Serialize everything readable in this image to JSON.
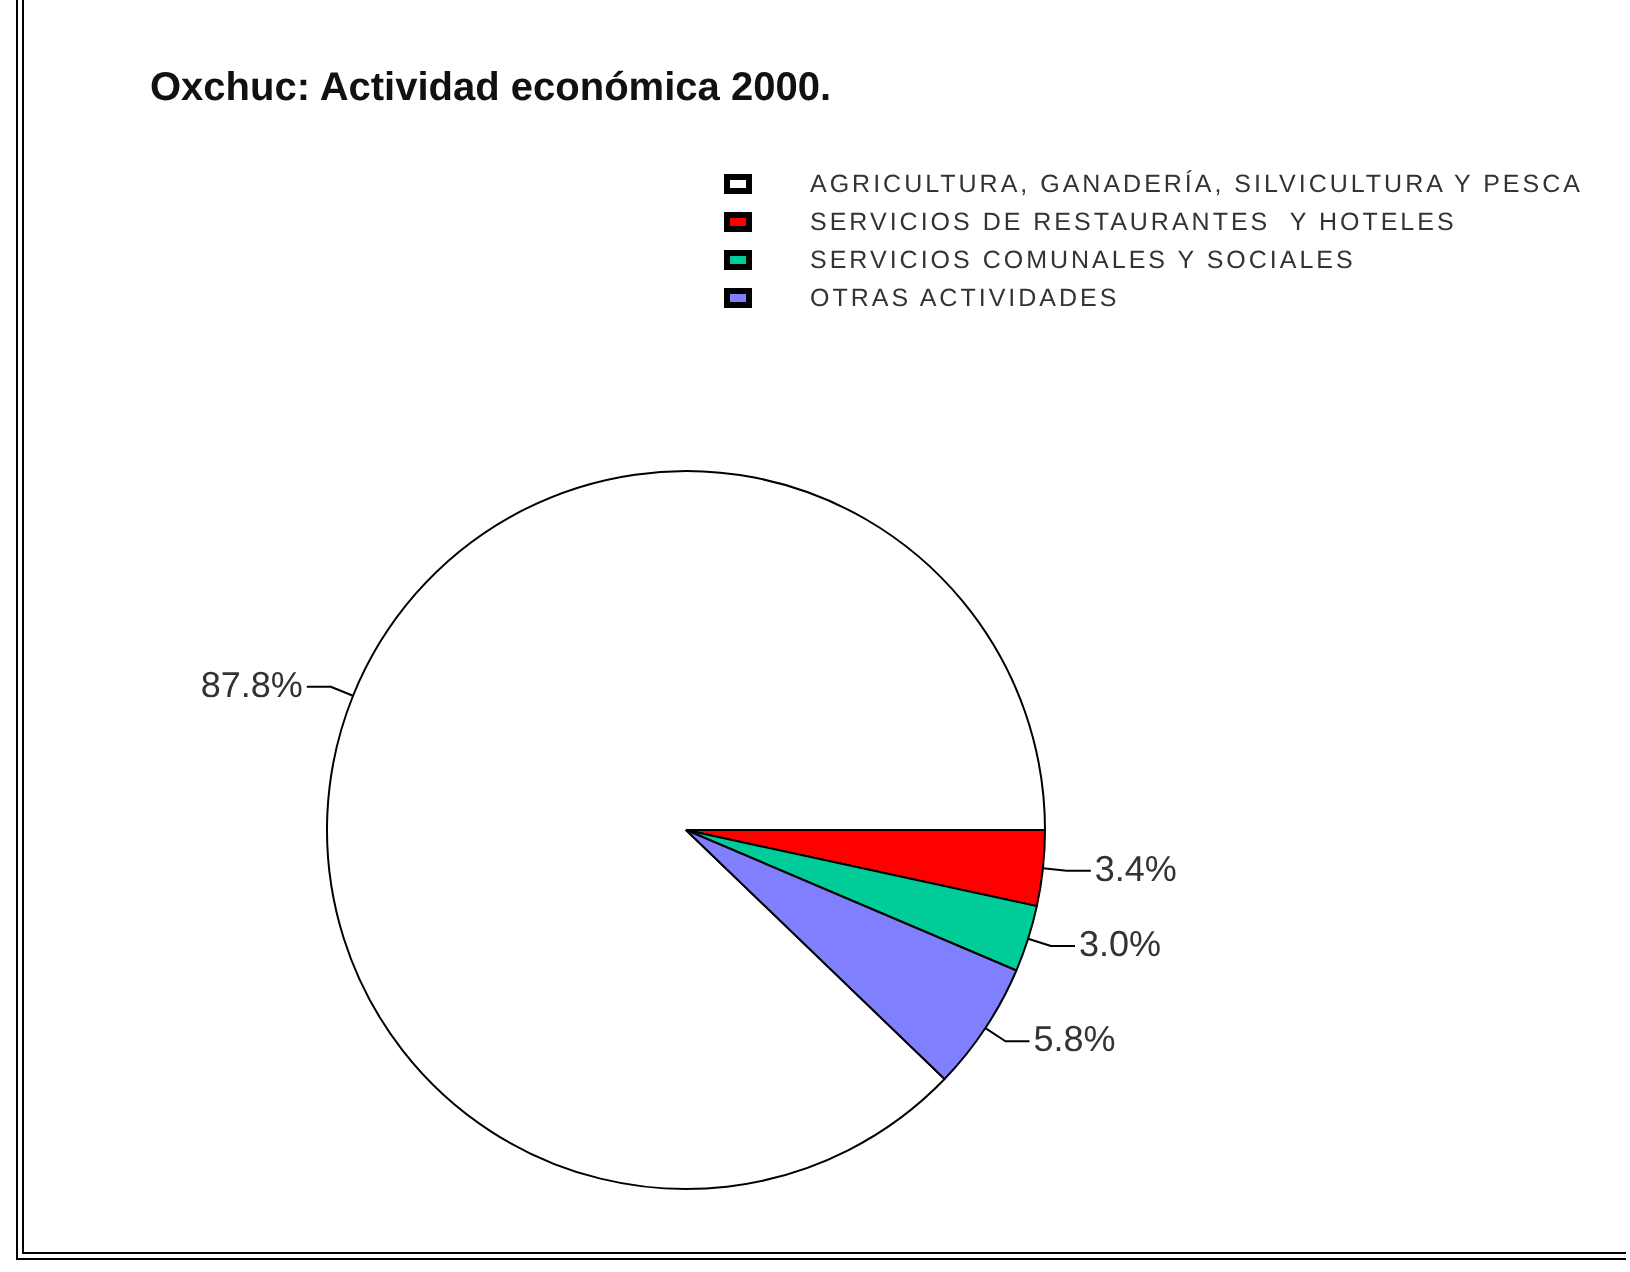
{
  "chart_data": {
    "type": "pie",
    "title": "Oxchuc: Actividad económica 2000.",
    "categories": [
      "AGRICULTURA, GANADERÍA, SILVICULTURA Y PESCA",
      "SERVICIOS DE RESTAURANTES  Y HOTELES",
      "SERVICIOS COMUNALES Y SOCIALES",
      "OTRAS ACTIVIDADES"
    ],
    "values": [
      87.8,
      3.4,
      3.0,
      5.8
    ],
    "colors": [
      "#ffffff",
      "#ff0000",
      "#00cc99",
      "#8080ff"
    ],
    "value_labels": [
      "87.8%",
      "3.4%",
      "3.0%",
      "5.8%"
    ],
    "legend": "top right"
  }
}
